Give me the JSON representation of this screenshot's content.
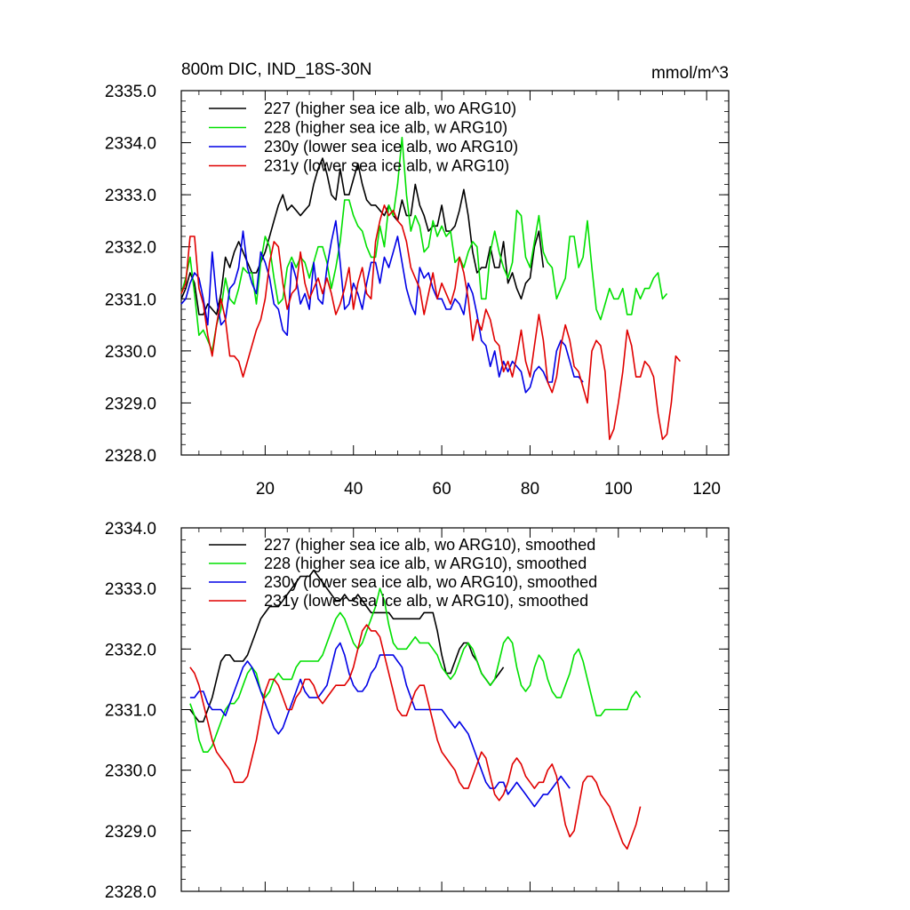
{
  "title_left": "800m DIC, IND_18S-30N",
  "title_right": "mmol/m^3",
  "colors": {
    "227": "#000000",
    "228": "#00e000",
    "230y": "#0000e6",
    "231y": "#e00000"
  },
  "chart_data": [
    {
      "type": "line",
      "title": "800m DIC, IND_18S-30N",
      "units": "mmol/m^3",
      "xlim": [
        1,
        125
      ],
      "ylim": [
        2328,
        2335
      ],
      "xticks": [
        20,
        40,
        60,
        80,
        100,
        120
      ],
      "xtick_labels": [
        "20",
        "40",
        "60",
        "80",
        "100",
        "120"
      ],
      "yticks": [
        2328,
        2329,
        2330,
        2331,
        2332,
        2333,
        2334,
        2335
      ],
      "ytick_labels": [
        "2328.0",
        "2329.0",
        "2330.0",
        "2331.0",
        "2332.0",
        "2333.0",
        "2334.0",
        "2335.0"
      ],
      "legend_position": "top-left",
      "series": [
        {
          "name": "227 (higher sea ice alb, wo ARG10)",
          "key": "227",
          "x0": 1,
          "values": [
            2331.0,
            2331.2,
            2331.5,
            2331.3,
            2330.7,
            2330.7,
            2330.9,
            2330.8,
            2330.7,
            2331.1,
            2331.8,
            2331.6,
            2331.9,
            2332.1,
            2331.9,
            2331.7,
            2331.5,
            2331.5,
            2331.7,
            2331.9,
            2332.2,
            2332.5,
            2332.8,
            2333.0,
            2332.7,
            2332.8,
            2332.7,
            2332.6,
            2332.7,
            2332.8,
            2333.2,
            2333.5,
            2333.7,
            2333.4,
            2333.0,
            2332.9,
            2333.5,
            2333.0,
            2333.0,
            2333.3,
            2333.6,
            2333.2,
            2332.9,
            2332.8,
            2332.8,
            2332.7,
            2332.6,
            2332.8,
            2332.6,
            2332.5,
            2332.9,
            2332.6,
            2332.6,
            2333.2,
            2332.8,
            2332.6,
            2332.3,
            2332.4,
            2332.4,
            2332.8,
            2332.3,
            2332.3,
            2332.4,
            2332.7,
            2333.1,
            2332.6,
            2331.9,
            2331.5,
            2331.6,
            2331.6,
            2332.0,
            2331.6,
            2331.6,
            2332.1,
            2331.3,
            2331.5,
            2331.2,
            2331.0,
            2331.3,
            2331.4,
            2332.0,
            2332.3,
            2331.6
          ]
        },
        {
          "name": "228 (higher sea ice alb, w ARG10)",
          "key": "228",
          "x0": 1,
          "values": [
            2331.1,
            2331.4,
            2331.8,
            2331.1,
            2330.3,
            2330.4,
            2330.2,
            2330.0,
            2330.5,
            2330.8,
            2331.4,
            2331.0,
            2330.9,
            2331.2,
            2331.6,
            2331.5,
            2331.5,
            2330.9,
            2331.7,
            2332.2,
            2332.0,
            2331.4,
            2330.9,
            2331.0,
            2331.6,
            2331.8,
            2331.6,
            2331.8,
            2331.7,
            2331.4,
            2331.7,
            2332.0,
            2332.0,
            2331.7,
            2331.2,
            2331.6,
            2332.1,
            2332.9,
            2332.9,
            2332.6,
            2332.4,
            2332.3,
            2332.0,
            2331.8,
            2331.8,
            2332.4,
            2332.0,
            2332.8,
            2332.6,
            2333.2,
            2334.1,
            2333.0,
            2332.3,
            2332.6,
            2332.4,
            2331.9,
            2332.0,
            2332.5,
            2332.2,
            2332.4,
            2332.2,
            2332.3,
            2331.7,
            2331.8,
            2331.6,
            2331.9,
            2332.1,
            2332.0,
            2331.0,
            2331.0,
            2331.9,
            2332.3,
            2331.9,
            2331.6,
            2331.4,
            2331.7,
            2332.7,
            2332.6,
            2331.8,
            2331.6,
            2332.1,
            2332.6,
            2331.9,
            2331.7,
            2331.6,
            2331.0,
            2331.2,
            2331.4,
            2332.2,
            2332.2,
            2331.6,
            2331.8,
            2332.5,
            2331.6,
            2330.8,
            2330.6,
            2330.9,
            2331.2,
            2331.0,
            2331.0,
            2331.2,
            2330.7,
            2330.7,
            2331.2,
            2331.0,
            2331.2,
            2331.2,
            2331.4,
            2331.5,
            2331.0,
            2331.1
          ]
        },
        {
          "name": "230y (lower sea ice alb, wo ARG10)",
          "key": "230y",
          "x0": 1,
          "values": [
            2330.9,
            2331.0,
            2331.3,
            2331.5,
            2331.4,
            2331.0,
            2330.5,
            2331.9,
            2331.0,
            2330.5,
            2330.6,
            2331.2,
            2331.3,
            2331.6,
            2332.3,
            2331.6,
            2331.3,
            2331.1,
            2331.9,
            2331.7,
            2331.4,
            2330.9,
            2330.8,
            2330.4,
            2330.3,
            2331.7,
            2331.4,
            2330.9,
            2331.1,
            2330.8,
            2331.7,
            2331.0,
            2330.9,
            2331.6,
            2332.1,
            2332.5,
            2331.7,
            2330.8,
            2330.9,
            2331.3,
            2331.1,
            2330.8,
            2331.3,
            2331.7,
            2331.7,
            2331.3,
            2331.8,
            2331.6,
            2331.9,
            2332.2,
            2331.7,
            2331.2,
            2330.9,
            2330.7,
            2331.6,
            2331.4,
            2331.5,
            2331.2,
            2331.0,
            2331.0,
            2330.8,
            2330.8,
            2331.0,
            2330.9,
            2330.7,
            2331.3,
            2331.1,
            2330.7,
            2330.2,
            2330.1,
            2329.7,
            2330.0,
            2329.5,
            2329.8,
            2329.6,
            2329.8,
            2329.7,
            2329.6,
            2329.2,
            2329.3,
            2329.6,
            2329.7,
            2329.6,
            2329.4,
            2329.4,
            2330.0,
            2330.2,
            2330.1,
            2329.8,
            2329.5,
            2329.5,
            2329.4
          ]
        },
        {
          "name": "231y (lower sea ice alb, w ARG10)",
          "key": "231y",
          "x0": 1,
          "values": [
            2331.1,
            2331.3,
            2332.2,
            2332.2,
            2331.2,
            2330.9,
            2330.3,
            2329.9,
            2330.5,
            2331.0,
            2330.6,
            2329.9,
            2329.9,
            2329.8,
            2329.5,
            2329.8,
            2330.1,
            2330.4,
            2330.6,
            2331.0,
            2331.7,
            2332.1,
            2332.0,
            2331.3,
            2330.8,
            2331.1,
            2331.2,
            2331.9,
            2331.3,
            2331.0,
            2331.2,
            2331.4,
            2331.1,
            2331.4,
            2331.1,
            2330.7,
            2330.9,
            2331.2,
            2331.6,
            2330.8,
            2331.3,
            2331.6,
            2331.1,
            2331.0,
            2332.1,
            2332.5,
            2332.8,
            2332.6,
            2332.7,
            2332.5,
            2332.4,
            2332.1,
            2331.6,
            2331.4,
            2331.2,
            2330.7,
            2331.1,
            2331.5,
            2331.0,
            2331.3,
            2331.1,
            2330.9,
            2331.2,
            2331.8,
            2331.5,
            2331.0,
            2330.2,
            2330.6,
            2330.4,
            2330.8,
            2330.6,
            2330.2,
            2330.1,
            2329.6,
            2329.8,
            2329.5,
            2329.9,
            2330.4,
            2329.8,
            2329.5,
            2330.1,
            2330.7,
            2330.2,
            2329.4,
            2329.2,
            2329.5,
            2330.1,
            2330.5,
            2330.2,
            2329.7,
            2329.6,
            2329.3,
            2329.0,
            2330.0,
            2330.2,
            2330.1,
            2329.6,
            2328.3,
            2328.5,
            2329.0,
            2329.6,
            2330.4,
            2330.1,
            2329.5,
            2329.5,
            2329.8,
            2329.7,
            2329.5,
            2328.8,
            2328.3,
            2328.4,
            2329.0,
            2329.9,
            2329.8
          ]
        }
      ]
    },
    {
      "type": "line",
      "xlim": [
        1,
        125
      ],
      "ylim": [
        2328,
        2334
      ],
      "xticks": [
        20,
        40,
        60,
        80,
        100,
        120
      ],
      "yticks": [
        2328,
        2329,
        2330,
        2331,
        2332,
        2333,
        2334
      ],
      "ytick_labels": [
        "2328.0",
        "2329.0",
        "2330.0",
        "2331.0",
        "2332.0",
        "2333.0",
        "2334.0"
      ],
      "legend_position": "top-left",
      "series": [
        {
          "name": "227 (higher sea ice alb, wo ARG10), smoothed",
          "key": "227",
          "x0": 3,
          "values": [
            2331.0,
            2330.9,
            2330.8,
            2330.8,
            2331.0,
            2331.2,
            2331.5,
            2331.8,
            2331.9,
            2331.9,
            2331.8,
            2331.8,
            2331.8,
            2331.9,
            2332.1,
            2332.3,
            2332.5,
            2332.6,
            2332.7,
            2332.7,
            2332.7,
            2332.8,
            2332.9,
            2333.0,
            2333.1,
            2333.2,
            2333.2,
            2333.2,
            2333.3,
            2333.2,
            2333.1,
            2333.0,
            2332.9,
            2332.8,
            2332.8,
            2332.9,
            2332.8,
            2332.8,
            2332.9,
            2332.8,
            2332.7,
            2332.6,
            2332.6,
            2332.6,
            2332.6,
            2332.6,
            2332.5,
            2332.5,
            2332.5,
            2332.5,
            2332.5,
            2332.5,
            2332.5,
            2332.6,
            2332.6,
            2332.6,
            2332.3,
            2331.9,
            2331.6,
            2331.6,
            2331.8,
            2332.0,
            2332.1,
            2332.1,
            2331.9,
            2331.8,
            2331.6,
            2331.5,
            2331.4,
            2331.5,
            2331.6,
            2331.7
          ]
        },
        {
          "name": "228 (higher sea ice alb, w ARG10), smoothed",
          "key": "228",
          "x0": 3,
          "values": [
            2331.1,
            2330.9,
            2330.5,
            2330.3,
            2330.3,
            2330.4,
            2330.6,
            2330.8,
            2331.0,
            2331.1,
            2331.1,
            2331.2,
            2331.4,
            2331.6,
            2331.7,
            2331.6,
            2331.3,
            2331.2,
            2331.3,
            2331.5,
            2331.6,
            2331.5,
            2331.5,
            2331.5,
            2331.7,
            2331.8,
            2331.8,
            2331.8,
            2331.8,
            2331.8,
            2331.9,
            2332.1,
            2332.3,
            2332.5,
            2332.6,
            2332.5,
            2332.3,
            2332.1,
            2332.0,
            2332.1,
            2332.3,
            2332.5,
            2332.7,
            2333.0,
            2332.8,
            2332.4,
            2332.1,
            2332.0,
            2332.0,
            2332.0,
            2332.1,
            2332.2,
            2332.1,
            2332.1,
            2332.1,
            2332.0,
            2331.9,
            2331.7,
            2331.6,
            2331.5,
            2331.6,
            2331.8,
            2332.0,
            2332.1,
            2332.0,
            2331.8,
            2331.6,
            2331.5,
            2331.4,
            2331.5,
            2331.8,
            2332.1,
            2332.2,
            2332.1,
            2331.7,
            2331.4,
            2331.3,
            2331.4,
            2331.7,
            2331.9,
            2331.8,
            2331.5,
            2331.3,
            2331.2,
            2331.2,
            2331.4,
            2331.6,
            2331.9,
            2332.0,
            2331.8,
            2331.5,
            2331.2,
            2330.9,
            2330.9,
            2331.0,
            2331.0,
            2331.0,
            2331.0,
            2331.0,
            2331.0,
            2331.2,
            2331.3,
            2331.2
          ]
        },
        {
          "name": "230y (lower sea ice alb, wo ARG10), smoothed",
          "key": "230y",
          "x0": 3,
          "values": [
            2331.2,
            2331.2,
            2331.3,
            2331.3,
            2331.1,
            2331.0,
            2331.0,
            2331.0,
            2330.9,
            2331.1,
            2331.3,
            2331.5,
            2331.7,
            2331.8,
            2331.7,
            2331.5,
            2331.3,
            2331.1,
            2330.9,
            2330.7,
            2330.6,
            2330.7,
            2330.9,
            2331.1,
            2331.3,
            2331.5,
            2331.3,
            2331.2,
            2331.2,
            2331.2,
            2331.3,
            2331.4,
            2331.7,
            2332.0,
            2332.1,
            2331.9,
            2331.6,
            2331.4,
            2331.3,
            2331.3,
            2331.4,
            2331.6,
            2331.7,
            2331.9,
            2331.9,
            2331.9,
            2331.9,
            2331.8,
            2331.7,
            2331.4,
            2331.2,
            2331.0,
            2331.0,
            2331.0,
            2331.0,
            2331.0,
            2331.0,
            2331.0,
            2330.9,
            2330.8,
            2330.7,
            2330.8,
            2330.7,
            2330.6,
            2330.4,
            2330.2,
            2330.0,
            2329.8,
            2329.7,
            2329.7,
            2329.8,
            2329.8,
            2329.6,
            2329.7,
            2329.8,
            2329.7,
            2329.6,
            2329.5,
            2329.4,
            2329.5,
            2329.6,
            2329.6,
            2329.7,
            2329.8,
            2329.9,
            2329.8,
            2329.7
          ]
        },
        {
          "name": "231y (lower sea ice alb, w ARG10), smoothed",
          "key": "231y",
          "x0": 3,
          "values": [
            2331.7,
            2331.6,
            2331.4,
            2331.1,
            2330.8,
            2330.5,
            2330.3,
            2330.2,
            2330.1,
            2330.0,
            2329.8,
            2329.8,
            2329.8,
            2329.9,
            2330.2,
            2330.5,
            2330.9,
            2331.3,
            2331.5,
            2331.5,
            2331.4,
            2331.2,
            2331.0,
            2331.0,
            2331.2,
            2331.3,
            2331.5,
            2331.5,
            2331.4,
            2331.2,
            2331.1,
            2331.2,
            2331.3,
            2331.4,
            2331.4,
            2331.4,
            2331.5,
            2331.7,
            2332.0,
            2332.3,
            2332.4,
            2332.3,
            2332.3,
            2332.2,
            2331.9,
            2331.6,
            2331.3,
            2331.0,
            2330.9,
            2330.9,
            2331.1,
            2331.3,
            2331.4,
            2331.4,
            2331.1,
            2330.8,
            2330.5,
            2330.3,
            2330.2,
            2330.1,
            2330.0,
            2329.8,
            2329.7,
            2329.7,
            2329.9,
            2330.1,
            2330.3,
            2330.2,
            2329.9,
            2329.6,
            2329.5,
            2329.6,
            2329.8,
            2330.1,
            2330.2,
            2330.1,
            2329.9,
            2329.8,
            2329.7,
            2329.8,
            2329.8,
            2330.0,
            2330.1,
            2329.9,
            2329.5,
            2329.1,
            2328.9,
            2329.0,
            2329.4,
            2329.8,
            2329.9,
            2329.9,
            2329.8,
            2329.6,
            2329.5,
            2329.4,
            2329.2,
            2329.0,
            2328.8,
            2328.7,
            2328.9,
            2329.1,
            2329.4
          ]
        }
      ]
    }
  ]
}
